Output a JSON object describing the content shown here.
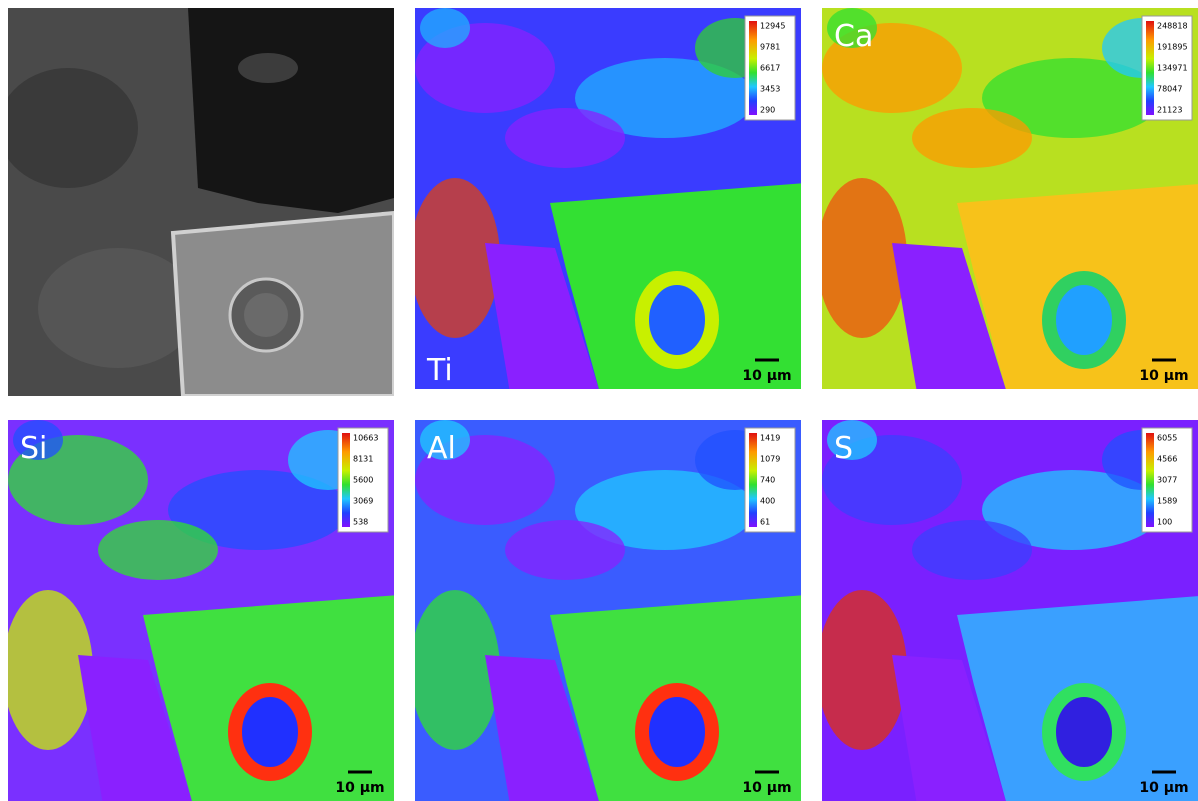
{
  "maps": [
    {
      "element": "Ti",
      "colorbar": [
        12945,
        9781,
        6617,
        3453,
        290
      ],
      "scale_bar": "10 µm"
    },
    {
      "element": "Ca",
      "colorbar": [
        248818,
        191895,
        134971,
        78047,
        21123
      ],
      "scale_bar": "10 µm"
    },
    {
      "element": "Si",
      "colorbar": [
        10663,
        8131,
        5600,
        3069,
        538
      ],
      "scale_bar": "10 µm"
    },
    {
      "element": "Al",
      "colorbar": [
        1419,
        1079,
        740,
        400,
        61
      ],
      "scale_bar": "10 µm"
    },
    {
      "element": "S",
      "colorbar": [
        6055,
        4566,
        3077,
        1589,
        100
      ],
      "scale_bar": "10 µm"
    }
  ]
}
